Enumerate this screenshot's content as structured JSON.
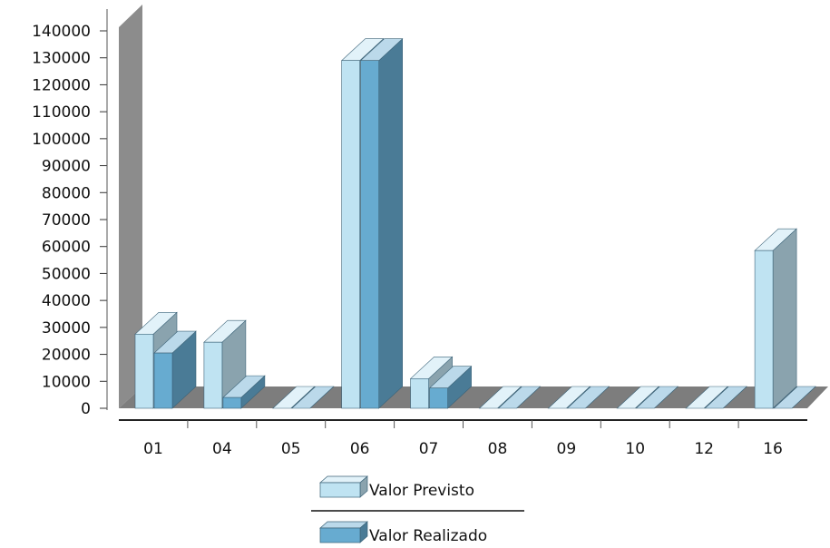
{
  "chart_data": {
    "type": "bar",
    "style": "3d-clustered",
    "categories": [
      "01",
      "04",
      "05",
      "06",
      "07",
      "08",
      "09",
      "10",
      "12",
      "16"
    ],
    "series": [
      {
        "name": "Valor Previsto",
        "color": "#bfe3f2",
        "values": [
          27500,
          24500,
          0,
          129000,
          11000,
          0,
          0,
          0,
          0,
          58500
        ]
      },
      {
        "name": "Valor Realizado",
        "color": "#67abd0",
        "values": [
          20500,
          4000,
          0,
          129000,
          7500,
          0,
          0,
          0,
          0,
          0
        ]
      }
    ],
    "ylim": [
      0,
      140000
    ],
    "yticks": [
      0,
      10000,
      20000,
      30000,
      40000,
      50000,
      60000,
      70000,
      80000,
      90000,
      100000,
      110000,
      120000,
      130000,
      140000
    ],
    "title": "",
    "xlabel": "",
    "ylabel": "",
    "grid": false,
    "legend_position": "bottom",
    "wall_color": "#8a8a8a",
    "floor_color": "#7a7a7a"
  }
}
